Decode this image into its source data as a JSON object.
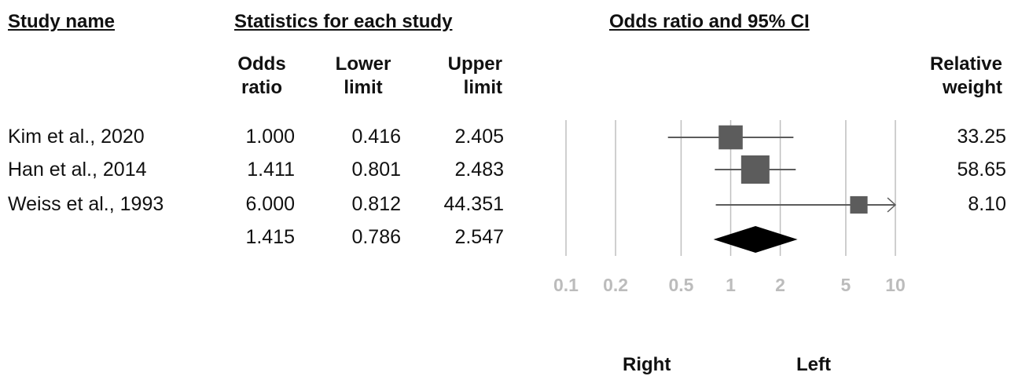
{
  "headers": {
    "study_name": "Study name",
    "statistics": "Statistics for each study",
    "plot_title": "Odds ratio and 95% CI"
  },
  "columns": {
    "odds_ratio": [
      "Odds",
      "ratio"
    ],
    "lower_limit": [
      "Lower",
      "limit"
    ],
    "upper_limit": [
      "Upper",
      "limit"
    ],
    "relative_weight": [
      "Relative",
      "weight"
    ]
  },
  "footer": {
    "favours_left": "Right",
    "favours_right": "Left"
  },
  "colors": {
    "marker": "#5c5c5c",
    "diamond": "#000000",
    "grid": "#bfbfbf",
    "tick_text": "#bcbcbc"
  },
  "chart_data": {
    "type": "forest",
    "x_scale": "log",
    "xlim": [
      0.1,
      10
    ],
    "x_ticks": [
      "0.1",
      "0.2",
      "0.5",
      "1",
      "2",
      "5",
      "10"
    ],
    "studies": [
      {
        "name": "Kim et al., 2020",
        "odds_ratio": "1.000",
        "lower": "0.416",
        "upper": "2.405",
        "weight": "33.25"
      },
      {
        "name": "Han et al., 2014",
        "odds_ratio": "1.411",
        "lower": "0.801",
        "upper": "2.483",
        "weight": "58.65"
      },
      {
        "name": "Weiss et al., 1993",
        "odds_ratio": "6.000",
        "lower": "0.812",
        "upper": "44.351",
        "weight": "8.10"
      }
    ],
    "summary": {
      "odds_ratio": "1.415",
      "lower": "0.786",
      "upper": "2.547"
    }
  }
}
